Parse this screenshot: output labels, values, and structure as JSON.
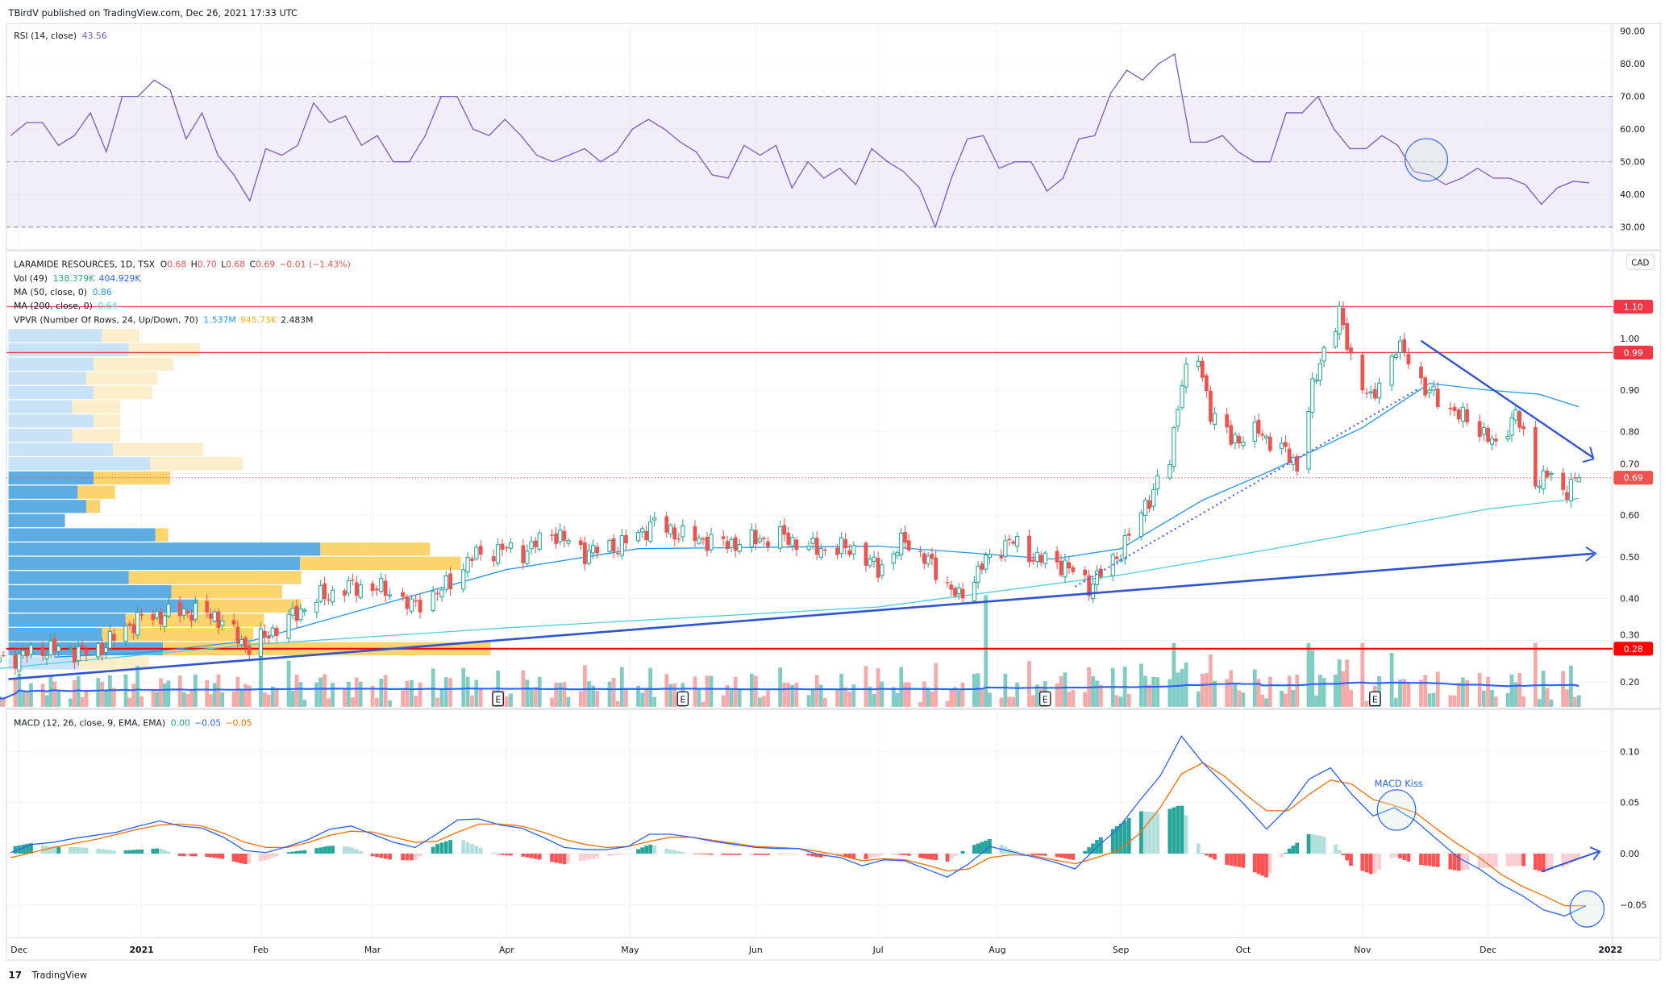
{
  "header": {
    "published": "TBirdV published on TradingView.com, Dec 26, 2021 17:33 UTC"
  },
  "footer": {
    "logo": "TradingView"
  },
  "rsi": {
    "legend": "RSI (14, close)",
    "value": "43.56",
    "color": "#7e57c2",
    "axis_ticks": [
      "90.00",
      "80.00",
      "70.00",
      "60.00",
      "50.00",
      "40.00",
      "30.00"
    ],
    "band": [
      30,
      70
    ],
    "values": [
      58,
      62,
      62,
      55,
      58,
      65,
      53,
      70,
      70,
      75,
      72,
      57,
      65,
      52,
      46,
      38,
      54,
      52,
      55,
      68,
      62,
      64,
      55,
      58,
      50,
      50,
      58,
      70,
      70,
      60,
      58,
      63,
      58,
      52,
      50,
      52,
      54,
      50,
      53,
      60,
      63,
      60,
      56,
      53,
      46,
      45,
      55,
      52,
      55,
      42,
      50,
      45,
      48,
      43,
      54,
      50,
      47,
      42,
      30,
      45,
      57,
      58,
      48,
      50,
      50,
      41,
      45,
      57,
      58,
      71,
      78,
      75,
      80,
      83,
      56,
      56,
      58,
      53,
      50,
      50,
      65,
      65,
      70,
      60,
      54,
      54,
      58,
      55,
      47,
      46,
      43,
      45,
      48,
      45,
      45,
      43,
      37,
      42,
      44,
      43.56
    ]
  },
  "price": {
    "symbol": "LARAMIDE RESOURCES, 1D, TSX",
    "ohlc": {
      "o_label": "O",
      "o": "0.68",
      "h_label": "H",
      "h": "0.70",
      "l_label": "L",
      "l": "0.68",
      "c_label": "C",
      "c": "0.69",
      "change": "−0.01 (−1.43%)"
    },
    "vol": {
      "label": "Vol (49)",
      "v1": "138.379K",
      "v2": "404.929K"
    },
    "ma50": {
      "label": "MA (50, close, 0)",
      "value": "0.86",
      "color": "#2196f3"
    },
    "ma200": {
      "label": "MA (200, close, 0)",
      "value": "0.64",
      "color": "#4dd0e1"
    },
    "vpvr": {
      "label": "VPVR (Number Of Rows, 24, Up/Down, 70)",
      "up": "1.537M",
      "down": "945.73K",
      "total": "2.483M"
    },
    "currency": "CAD",
    "axis_ticks": [
      "1.00",
      "0.90",
      "0.80",
      "0.70",
      "0.60",
      "0.50",
      "0.40",
      "0.30",
      "0.20"
    ],
    "levels": [
      {
        "price": "1.10",
        "color": "#f23645"
      },
      {
        "price": "0.99",
        "color": "#f23645"
      },
      {
        "price": "0.69",
        "color": "#ef5350",
        "style": "dotted",
        "current": true
      },
      {
        "price": "0.28",
        "color": "#ff0000"
      }
    ],
    "earnings_marker": "E",
    "up_color": "#26a69a",
    "down_color": "#ef5350"
  },
  "macd": {
    "legend": "MACD (12, 26, close, 9, EMA, EMA)",
    "hist_value": "0.00",
    "macd_value": "−0.05",
    "signal_value": "−0.05",
    "macd_color": "#2962ff",
    "signal_color": "#ff6d00",
    "axis_ticks": [
      "0.10",
      "0.05",
      "0.00",
      "−0.05"
    ],
    "annotation": "MACD Kiss"
  },
  "chart_data": {
    "type": "candlestick",
    "close_path": [
      [
        "2020-11-26",
        0.25
      ],
      [
        "2020-12-08",
        0.28
      ],
      [
        "2020-12-20",
        0.27
      ],
      [
        "2020-12-31",
        0.35
      ],
      [
        "2021-01-12",
        0.37
      ],
      [
        "2021-01-20",
        0.36
      ],
      [
        "2021-01-29",
        0.28
      ],
      [
        "2021-02-05",
        0.33
      ],
      [
        "2021-02-15",
        0.4
      ],
      [
        "2021-02-24",
        0.43
      ],
      [
        "2021-03-05",
        0.42
      ],
      [
        "2021-03-10",
        0.38
      ],
      [
        "2021-03-17",
        0.42
      ],
      [
        "2021-03-24",
        0.5
      ],
      [
        "2021-03-31",
        0.52
      ],
      [
        "2021-04-05",
        0.51
      ],
      [
        "2021-04-12",
        0.56
      ],
      [
        "2021-04-20",
        0.51
      ],
      [
        "2021-04-29",
        0.53
      ],
      [
        "2021-05-07",
        0.58
      ],
      [
        "2021-05-14",
        0.55
      ],
      [
        "2021-05-25",
        0.53
      ],
      [
        "2021-06-07",
        0.55
      ],
      [
        "2021-06-15",
        0.52
      ],
      [
        "2021-06-25",
        0.52
      ],
      [
        "2021-07-01",
        0.47
      ],
      [
        "2021-07-08",
        0.54
      ],
      [
        "2021-07-15",
        0.48
      ],
      [
        "2021-07-22",
        0.4
      ],
      [
        "2021-07-28",
        0.48
      ],
      [
        "2021-08-04",
        0.54
      ],
      [
        "2021-08-10",
        0.5
      ],
      [
        "2021-08-18",
        0.48
      ],
      [
        "2021-08-24",
        0.43
      ],
      [
        "2021-08-31",
        0.5
      ],
      [
        "2021-09-03",
        0.55
      ],
      [
        "2021-09-09",
        0.66
      ],
      [
        "2021-09-13",
        0.73
      ],
      [
        "2021-09-16",
        0.93
      ],
      [
        "2021-09-20",
        0.97
      ],
      [
        "2021-09-23",
        0.85
      ],
      [
        "2021-09-28",
        0.78
      ],
      [
        "2021-10-05",
        0.8
      ],
      [
        "2021-10-12",
        0.75
      ],
      [
        "2021-10-15",
        0.72
      ],
      [
        "2021-10-19",
        0.9
      ],
      [
        "2021-10-22",
        1.0
      ],
      [
        "2021-10-26",
        1.08
      ],
      [
        "2021-10-29",
        0.98
      ],
      [
        "2021-11-03",
        0.87
      ],
      [
        "2021-11-05",
        0.92
      ],
      [
        "2021-11-09",
        1.0
      ],
      [
        "2021-11-12",
        0.98
      ],
      [
        "2021-11-16",
        0.9
      ],
      [
        "2021-11-19",
        0.88
      ],
      [
        "2021-11-24",
        0.84
      ],
      [
        "2021-11-30",
        0.8
      ],
      [
        "2021-12-03",
        0.76
      ],
      [
        "2021-12-08",
        0.85
      ],
      [
        "2021-12-13",
        0.68
      ],
      [
        "2021-12-16",
        0.7
      ],
      [
        "2021-12-20",
        0.65
      ],
      [
        "2021-12-22",
        0.68
      ],
      [
        "2021-12-24",
        0.69
      ]
    ],
    "ma50": [
      [
        "2020-12-10",
        0.26
      ],
      [
        "2021-01-01",
        0.27
      ],
      [
        "2021-01-30",
        0.3
      ],
      [
        "2021-03-01",
        0.38
      ],
      [
        "2021-04-01",
        0.47
      ],
      [
        "2021-05-03",
        0.52
      ],
      [
        "2021-07-01",
        0.526
      ],
      [
        "2021-08-15",
        0.495
      ],
      [
        "2021-09-01",
        0.52
      ],
      [
        "2021-09-21",
        0.636
      ],
      [
        "2021-10-09",
        0.71
      ],
      [
        "2021-11-01",
        0.81
      ],
      [
        "2021-11-17",
        0.916
      ],
      [
        "2021-12-01",
        0.9
      ],
      [
        "2021-12-14",
        0.89
      ],
      [
        "2021-12-24",
        0.86
      ]
    ],
    "ma200": [
      [
        "2020-11-26",
        0.233
      ],
      [
        "2021-01-30",
        0.29
      ],
      [
        "2021-04-01",
        0.33
      ],
      [
        "2021-07-01",
        0.38
      ],
      [
        "2021-09-01",
        0.457
      ],
      [
        "2021-10-09",
        0.52
      ],
      [
        "2021-12-01",
        0.615
      ],
      [
        "2021-12-24",
        0.64
      ]
    ],
    "macd_weekly": [
      0.001,
      0.009,
      0.011,
      0.015,
      0.018,
      0.021,
      0.027,
      0.032,
      0.027,
      0.025,
      0.016,
      0.003,
      0.001,
      0.007,
      0.014,
      0.024,
      0.027,
      0.019,
      0.011,
      0.006,
      0.019,
      0.033,
      0.034,
      0.028,
      0.025,
      0.016,
      0.006,
      0.004,
      0.004,
      0.007,
      0.019,
      0.019,
      0.016,
      0.012,
      0.009,
      0.006,
      0.005,
      0.005,
      -0.001,
      -0.004,
      -0.012,
      -0.006,
      -0.007,
      -0.015,
      -0.023,
      -0.01,
      0.007,
      0.002,
      -0.003,
      -0.008,
      -0.015,
      0.006,
      0.024,
      0.051,
      0.076,
      0.115,
      0.089,
      0.068,
      0.047,
      0.024,
      0.045,
      0.073,
      0.084,
      0.058,
      0.037,
      0.045,
      0.032,
      0.014,
      -0.004,
      -0.015,
      -0.03,
      -0.041,
      -0.055,
      -0.061,
      -0.051
    ],
    "signal_weekly": [
      -0.004,
      0.001,
      0.006,
      0.01,
      0.014,
      0.019,
      0.024,
      0.028,
      0.029,
      0.027,
      0.02,
      0.011,
      0.006,
      0.006,
      0.011,
      0.018,
      0.022,
      0.021,
      0.016,
      0.011,
      0.012,
      0.021,
      0.029,
      0.029,
      0.027,
      0.021,
      0.014,
      0.009,
      0.006,
      0.007,
      0.012,
      0.016,
      0.016,
      0.013,
      0.01,
      0.007,
      0.006,
      0.005,
      0.002,
      -0.002,
      -0.007,
      -0.005,
      -0.006,
      -0.011,
      -0.017,
      -0.015,
      -0.004,
      -0.001,
      -0.002,
      -0.006,
      -0.01,
      -0.004,
      0.003,
      0.019,
      0.045,
      0.078,
      0.089,
      0.076,
      0.058,
      0.042,
      0.042,
      0.058,
      0.072,
      0.068,
      0.053,
      0.047,
      0.04,
      0.024,
      0.009,
      -0.004,
      -0.02,
      -0.032,
      -0.041,
      -0.051,
      -0.051
    ],
    "vpvr_rows": [
      {
        "up": 88,
        "down": 35
      },
      {
        "up": 113,
        "down": 67
      },
      {
        "up": 80,
        "down": 75
      },
      {
        "up": 73,
        "down": 67
      },
      {
        "up": 80,
        "down": 55
      },
      {
        "up": 60,
        "down": 45
      },
      {
        "up": 80,
        "down": 25
      },
      {
        "up": 60,
        "down": 45
      },
      {
        "up": 98,
        "down": 85
      },
      {
        "up": 133,
        "down": 87
      },
      {
        "up": 80,
        "down": 72,
        "value_area": true
      },
      {
        "up": 65,
        "down": 35,
        "value_area": true
      },
      {
        "up": 73,
        "down": 13,
        "value_area": true
      },
      {
        "up": 53,
        "down": 0,
        "value_area": true
      },
      {
        "up": 138,
        "down": 12,
        "value_area": true
      },
      {
        "up": 293,
        "down": 103,
        "value_area": true
      },
      {
        "up": 274,
        "down": 151,
        "value_area": true
      },
      {
        "up": 113,
        "down": 162,
        "value_area": true
      },
      {
        "up": 153,
        "down": 104,
        "value_area": true
      },
      {
        "up": 178,
        "down": 97,
        "value_area": true
      },
      {
        "up": 110,
        "down": 130,
        "value_area": true
      },
      {
        "up": 88,
        "down": 142,
        "value_area": true
      },
      {
        "up": 145,
        "down": 308,
        "value_area": true
      },
      {
        "up": 66,
        "down": 66
      }
    ],
    "xaxis_ticks": [
      "Dec",
      "2021",
      "Feb",
      "Mar",
      "Apr",
      "May",
      "Jun",
      "Jul",
      "Aug",
      "Sep",
      "Oct",
      "Nov",
      "Dec",
      "2022"
    ],
    "xaxis_dates": [
      "2020-12-01",
      "2021-01-01",
      "2021-02-01",
      "2021-03-01",
      "2021-04-01",
      "2021-05-01",
      "2021-06-01",
      "2021-07-01",
      "2021-08-01",
      "2021-09-01",
      "2021-10-01",
      "2021-11-01",
      "2021-12-01",
      "2022-01-01"
    ],
    "earnings_dates": [
      "2021-03-30",
      "2021-05-14",
      "2021-08-13",
      "2021-11-04"
    ]
  }
}
